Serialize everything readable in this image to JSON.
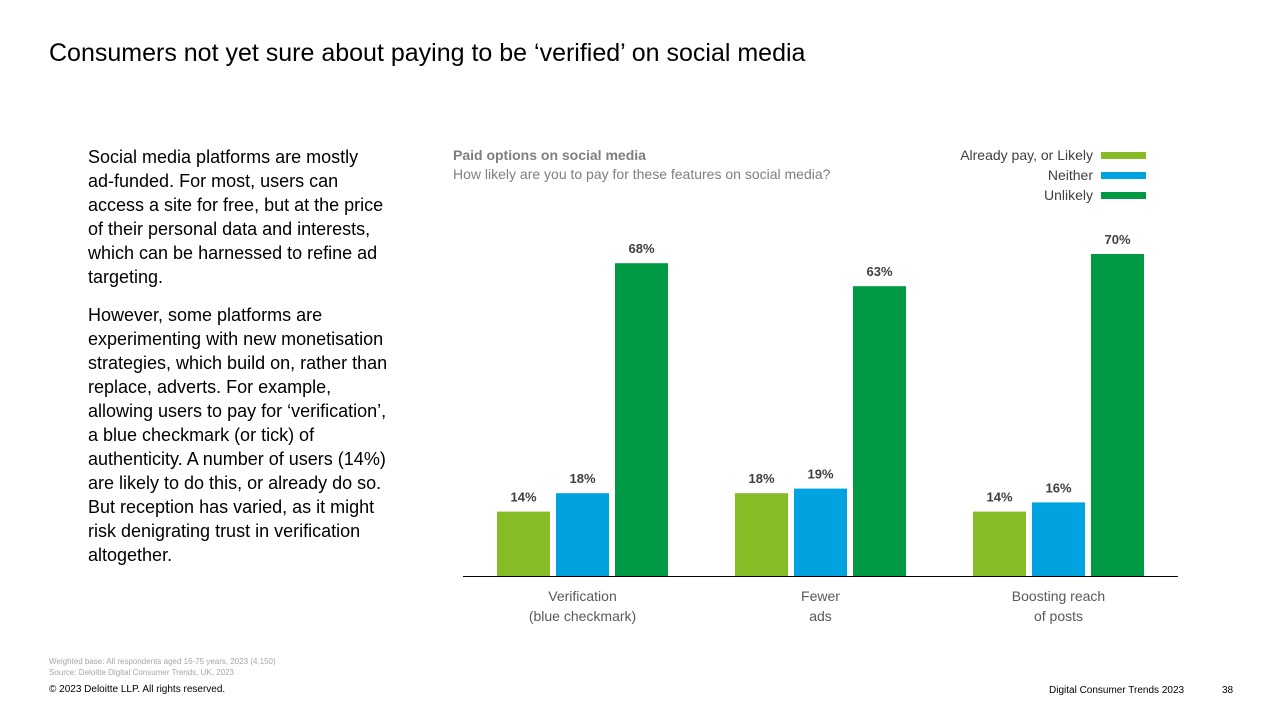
{
  "slide": {
    "title": "Consumers not yet sure about paying to be ‘verified’ on social media",
    "body_paragraphs": [
      "Social media platforms are mostly ad-funded. For most, users can access a site for free, but at the price of their personal data and interests, which can be harnessed to refine ad targeting.",
      "However, some platforms are experimenting with new monetisation strategies, which build on, rather than replace, adverts. For example, allowing users to pay for ‘verification’, a blue checkmark (or tick) of authenticity. A number of users (14%) are likely to do this, or already do so. But reception has varied, as it might risk denigrating trust in verification altogether."
    ],
    "base_note": "Weighted base: All respondents aged 16-75 years, 2023 (4,150)",
    "source_note": "Source: Deloitte Digital Consumer Trends, UK, 2023",
    "copyright": "© 2023 Deloitte LLP. All rights reserved.",
    "footer_title": "Digital Consumer Trends 2023",
    "page_number": "38"
  },
  "chart_data": {
    "type": "bar",
    "title": "Paid options on social media",
    "subtitle": "How likely are you to pay for these features on social media?",
    "categories": [
      [
        "Verification",
        "(blue checkmark)"
      ],
      [
        "Fewer",
        "ads"
      ],
      [
        "Boosting reach",
        "of posts"
      ]
    ],
    "series": [
      {
        "name": "Already pay, or Likely",
        "color": "#86bc25",
        "values": [
          14,
          18,
          14
        ]
      },
      {
        "name": "Neither",
        "color": "#00a3e0",
        "values": [
          18,
          19,
          16
        ]
      },
      {
        "name": "Unlikely",
        "color": "#009a44",
        "values": [
          68,
          63,
          70
        ]
      }
    ],
    "value_suffix": "%",
    "ylim": [
      0,
      70
    ],
    "grid": false,
    "legend_position": "top-right"
  }
}
